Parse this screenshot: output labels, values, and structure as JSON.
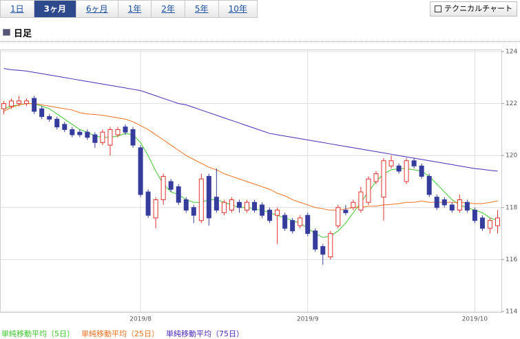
{
  "tabs": [
    {
      "label": "1日",
      "selected": false
    },
    {
      "label": "3ヶ月",
      "selected": true
    },
    {
      "label": "6ヶ月",
      "selected": false
    },
    {
      "label": "1年",
      "selected": false
    },
    {
      "label": "2年",
      "selected": false
    },
    {
      "label": "5年",
      "selected": false
    },
    {
      "label": "10年",
      "selected": false
    }
  ],
  "technical_button": "テクニカルチャート",
  "section_title": "日足",
  "chart_data": {
    "type": "candlestick",
    "categories": [
      null,
      null,
      null,
      null,
      null,
      null,
      null,
      null,
      null,
      null,
      null,
      null,
      null,
      null,
      null,
      null,
      null,
      null,
      "2019/8",
      null,
      null,
      null,
      null,
      null,
      null,
      null,
      null,
      null,
      null,
      null,
      null,
      null,
      null,
      null,
      null,
      null,
      null,
      null,
      null,
      null,
      "2019/9",
      null,
      null,
      null,
      null,
      null,
      null,
      null,
      null,
      null,
      null,
      null,
      null,
      null,
      null,
      null,
      null,
      null,
      null,
      null,
      null,
      null,
      "2019/10",
      null,
      null,
      null
    ],
    "open": [
      121.8,
      121.9,
      122.0,
      122.0,
      122.2,
      121.8,
      121.5,
      121.4,
      121.2,
      121.0,
      120.9,
      120.9,
      120.8,
      120.5,
      120.4,
      120.8,
      121.1,
      121.0,
      120.3,
      118.6,
      117.6,
      118.3,
      119.0,
      118.8,
      118.3,
      118.0,
      117.5,
      119.2,
      118.4,
      117.8,
      117.9,
      118.2,
      117.9,
      118.2,
      118.1,
      117.9,
      117.7,
      117.7,
      117.5,
      117.3,
      117.7,
      117.1,
      116.5,
      116.1,
      117.3,
      117.9,
      118.0,
      117.9,
      118.2,
      119.0,
      118.4,
      119.6,
      119.6,
      119.0,
      119.8,
      119.6,
      119.2,
      118.4,
      118.3,
      118.1,
      117.9,
      118.2,
      117.9,
      117.6,
      117.2,
      117.3
    ],
    "high": [
      122.1,
      122.2,
      122.3,
      122.2,
      122.3,
      121.9,
      121.6,
      121.5,
      121.3,
      121.1,
      121.0,
      121.0,
      120.9,
      121.0,
      121.1,
      121.1,
      121.2,
      121.1,
      120.4,
      118.7,
      118.4,
      119.3,
      119.1,
      118.9,
      118.4,
      118.1,
      119.3,
      119.3,
      119.5,
      118.3,
      118.4,
      118.3,
      118.3,
      118.3,
      118.2,
      118.0,
      118.0,
      117.8,
      117.6,
      117.7,
      117.8,
      117.2,
      116.6,
      117.1,
      118.1,
      118.1,
      118.3,
      118.8,
      119.2,
      119.4,
      119.9,
      120.0,
      119.7,
      119.9,
      119.9,
      119.7,
      119.3,
      118.5,
      118.4,
      118.2,
      118.5,
      118.3,
      118.0,
      117.7,
      117.6,
      117.9
    ],
    "low": [
      121.6,
      121.8,
      121.9,
      121.9,
      121.6,
      121.4,
      121.3,
      121.0,
      120.9,
      120.7,
      120.7,
      120.6,
      120.3,
      120.4,
      120.0,
      120.7,
      120.8,
      120.3,
      118.4,
      117.6,
      117.2,
      118.1,
      118.6,
      118.1,
      117.8,
      117.4,
      117.4,
      117.3,
      117.8,
      117.7,
      117.8,
      117.8,
      117.8,
      117.8,
      117.6,
      117.4,
      116.6,
      117.1,
      117.0,
      117.2,
      116.9,
      116.3,
      115.8,
      116.0,
      117.2,
      117.7,
      117.9,
      117.8,
      118.1,
      118.9,
      117.5,
      119.5,
      119.3,
      118.9,
      119.5,
      119.1,
      118.4,
      117.9,
      118.0,
      117.8,
      117.8,
      117.8,
      117.4,
      117.1,
      117.0,
      117.0
    ],
    "close": [
      122.0,
      122.1,
      122.1,
      122.1,
      121.7,
      121.5,
      121.4,
      121.1,
      121.0,
      120.8,
      120.8,
      120.7,
      120.5,
      120.9,
      121.0,
      121.0,
      120.9,
      120.4,
      118.5,
      117.7,
      118.3,
      119.2,
      118.7,
      118.2,
      117.9,
      117.7,
      119.1,
      117.6,
      117.9,
      118.2,
      118.3,
      118.0,
      118.2,
      117.9,
      117.7,
      117.5,
      117.9,
      117.2,
      117.1,
      117.6,
      117.0,
      116.4,
      116.2,
      117.0,
      118.0,
      117.8,
      118.2,
      118.6,
      119.1,
      119.3,
      119.8,
      119.8,
      119.4,
      119.8,
      119.6,
      119.2,
      118.5,
      118.0,
      118.1,
      117.9,
      118.3,
      117.9,
      117.5,
      117.2,
      117.5,
      117.6
    ],
    "up_color": "#e0302c",
    "down_color": "#363c9c",
    "series": [
      {
        "name": "単純移動平均（5日）",
        "color": "#3cc82c",
        "values": [
          121.8,
          121.9,
          121.95,
          122.0,
          122.0,
          121.9,
          121.8,
          121.6,
          121.4,
          121.2,
          121.0,
          120.9,
          120.75,
          120.7,
          120.7,
          120.75,
          120.85,
          120.8,
          120.5,
          120.0,
          119.4,
          118.9,
          118.6,
          118.5,
          118.3,
          118.2,
          118.2,
          118.3,
          118.3,
          118.2,
          118.1,
          118.0,
          118.0,
          117.95,
          117.9,
          117.8,
          117.7,
          117.6,
          117.5,
          117.4,
          117.2,
          117.0,
          116.85,
          116.9,
          117.1,
          117.4,
          117.8,
          118.2,
          118.6,
          119.0,
          119.3,
          119.45,
          119.5,
          119.5,
          119.45,
          119.4,
          119.2,
          118.9,
          118.6,
          118.3,
          118.1,
          118.0,
          117.9,
          117.8,
          117.6,
          117.5
        ]
      },
      {
        "name": "単純移動平均（25日）",
        "color": "#f07020",
        "values": [
          121.7,
          121.85,
          121.95,
          122.0,
          122.0,
          121.95,
          121.9,
          121.85,
          121.8,
          121.75,
          121.65,
          121.6,
          121.58,
          121.55,
          121.5,
          121.45,
          121.4,
          121.3,
          121.15,
          121.0,
          120.8,
          120.6,
          120.4,
          120.2,
          120.0,
          119.85,
          119.7,
          119.55,
          119.45,
          119.3,
          119.2,
          119.1,
          119.0,
          118.9,
          118.8,
          118.7,
          118.55,
          118.45,
          118.3,
          118.2,
          118.1,
          118.0,
          117.95,
          117.9,
          117.9,
          117.95,
          118.0,
          118.0,
          118.05,
          118.05,
          118.1,
          118.12,
          118.15,
          118.2,
          118.2,
          118.25,
          118.2,
          118.2,
          118.2,
          118.2,
          118.2,
          118.18,
          118.15,
          118.15,
          118.2,
          118.25
        ]
      },
      {
        "name": "単純移動平均（75日）",
        "color": "#4a28b8",
        "values": [
          123.35,
          123.3,
          123.28,
          123.25,
          123.2,
          123.15,
          123.1,
          123.05,
          123.0,
          122.95,
          122.9,
          122.85,
          122.8,
          122.75,
          122.7,
          122.65,
          122.6,
          122.55,
          122.5,
          122.4,
          122.3,
          122.2,
          122.1,
          122.0,
          121.95,
          121.85,
          121.75,
          121.65,
          121.55,
          121.45,
          121.35,
          121.25,
          121.15,
          121.05,
          120.95,
          120.85,
          120.8,
          120.75,
          120.7,
          120.65,
          120.6,
          120.55,
          120.5,
          120.45,
          120.4,
          120.35,
          120.3,
          120.25,
          120.2,
          120.15,
          120.1,
          120.05,
          120.0,
          119.95,
          119.9,
          119.85,
          119.8,
          119.75,
          119.7,
          119.65,
          119.6,
          119.55,
          119.5,
          119.47,
          119.43,
          119.4
        ]
      }
    ],
    "ylim": [
      114,
      124
    ],
    "yticks": [
      114,
      116,
      118,
      120,
      122,
      124
    ],
    "grid": true
  }
}
